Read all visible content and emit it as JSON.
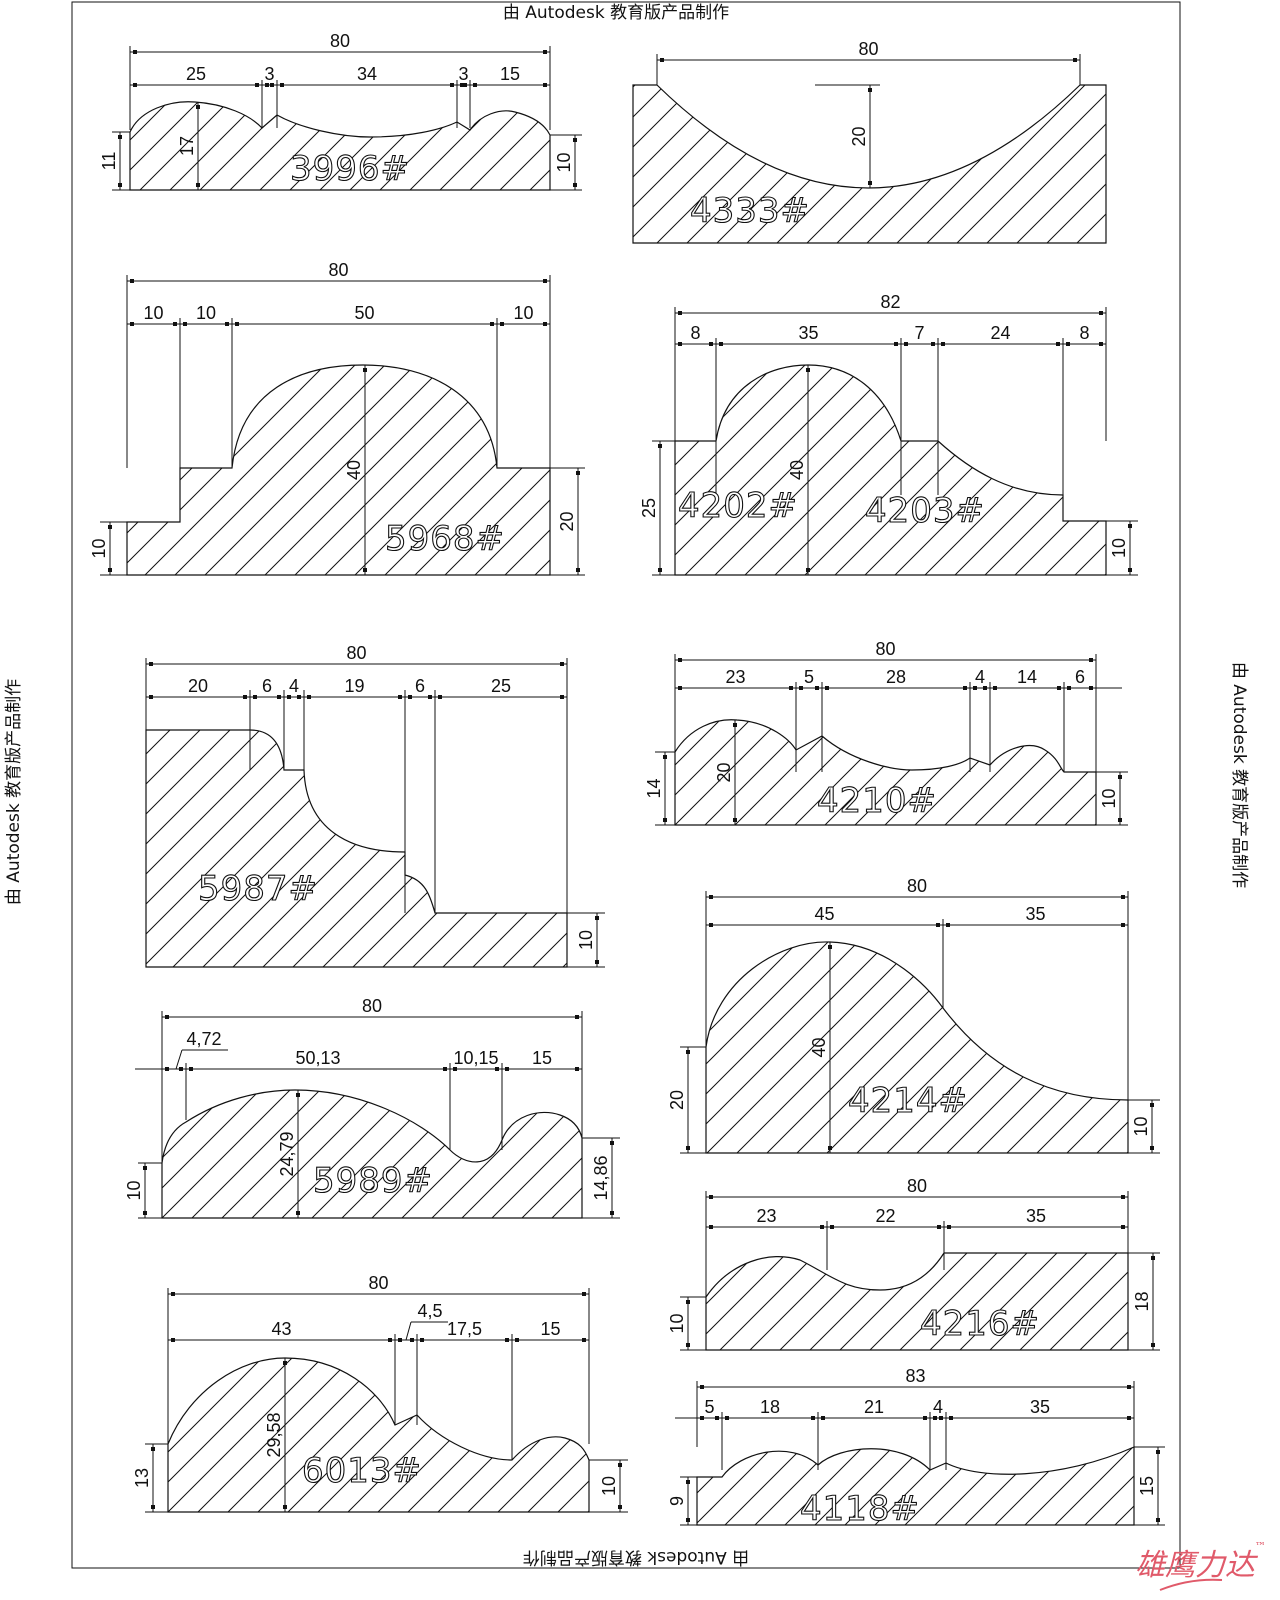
{
  "watermark": {
    "top": "由 Autodesk 教育版产品制作",
    "bottom": "由 Autodesk 教育版产品制作",
    "left": "由 Autodesk 教育版产品制作",
    "right": "由 Autodesk 教育版产品制作"
  },
  "logo": {
    "text": "雄鹰力达",
    "tm": "™",
    "color": "#e05a6a"
  },
  "profiles": [
    {
      "label": "3996#",
      "dims": [
        "80",
        "25",
        "3",
        "34",
        "3",
        "15",
        "11",
        "17",
        "10"
      ]
    },
    {
      "label": "4333#",
      "dims": [
        "80",
        "20"
      ]
    },
    {
      "label": "5968#",
      "dims": [
        "80",
        "10",
        "10",
        "50",
        "10",
        "40",
        "20",
        "10"
      ]
    },
    {
      "label": "4202#",
      "label2": "4203#",
      "dims": [
        "82",
        "8",
        "35",
        "7",
        "24",
        "8",
        "40",
        "25",
        "10"
      ]
    },
    {
      "label": "5987#",
      "dims": [
        "80",
        "20",
        "6",
        "4",
        "19",
        "6",
        "25",
        "10"
      ]
    },
    {
      "label": "4210#",
      "dims": [
        "80",
        "23",
        "5",
        "28",
        "4",
        "14",
        "6",
        "20",
        "14",
        "10"
      ]
    },
    {
      "label": "4214#",
      "dims": [
        "80",
        "45",
        "35",
        "40",
        "20",
        "10"
      ]
    },
    {
      "label": "5989#",
      "dims": [
        "80",
        "4,72",
        "50,13",
        "10,15",
        "15",
        "24,79",
        "10",
        "14,86"
      ]
    },
    {
      "label": "4216#",
      "dims": [
        "80",
        "23",
        "22",
        "35",
        "10",
        "18"
      ]
    },
    {
      "label": "6013#",
      "dims": [
        "80",
        "43",
        "4,5",
        "17,5",
        "15",
        "29,58",
        "13",
        "10"
      ]
    },
    {
      "label": "4118#",
      "dims": [
        "83",
        "5",
        "18",
        "21",
        "4",
        "35",
        "9",
        "15"
      ]
    }
  ]
}
